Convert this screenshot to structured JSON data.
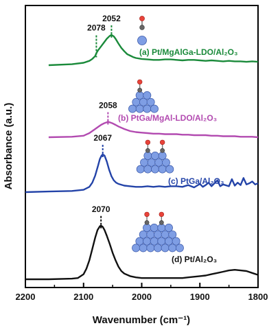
{
  "chart_data": {
    "type": "line",
    "xlabel": "Wavenumber (cm⁻¹)",
    "ylabel": "Absorbance (a.u.)",
    "x_reversed": true,
    "xlim": [
      1800,
      2200
    ],
    "xticks": [
      "2200",
      "2100",
      "2000",
      "1900",
      "1800"
    ],
    "series": [
      {
        "name": "(a) Pt/MgAlGa-LDO/Al₂O₃",
        "color": "#1a8a3a",
        "peaks": [
          "2078",
          "2052"
        ],
        "x": [
          2160,
          2120,
          2100,
          2090,
          2085,
          2080,
          2078,
          2075,
          2070,
          2065,
          2060,
          2055,
          2052,
          2048,
          2045,
          2040,
          2035,
          2030,
          2025,
          2020,
          2015,
          2010,
          2000,
          1990,
          1980,
          1970,
          1960,
          1950,
          1940,
          1930,
          1920,
          1910,
          1900,
          1890,
          1880,
          1870,
          1860,
          1850,
          1840,
          1830,
          1820,
          1810,
          1800
        ],
        "y": [
          0.0,
          0.02,
          0.05,
          0.09,
          0.13,
          0.19,
          0.25,
          0.31,
          0.39,
          0.47,
          0.55,
          0.61,
          0.63,
          0.6,
          0.55,
          0.45,
          0.36,
          0.29,
          0.23,
          0.2,
          0.17,
          0.15,
          0.13,
          0.12,
          0.11,
          0.11,
          0.12,
          0.12,
          0.11,
          0.1,
          0.11,
          0.11,
          0.1,
          0.09,
          0.1,
          0.09,
          0.08,
          0.09,
          0.08,
          0.08,
          0.07,
          0.08,
          0.07
        ]
      },
      {
        "name": "(b) PtGa/MgAl-LDO/Al₂O₃",
        "color": "#b24ab0",
        "peaks": [
          "2058"
        ],
        "x": [
          2160,
          2120,
          2100,
          2090,
          2080,
          2075,
          2070,
          2065,
          2060,
          2058,
          2055,
          2050,
          2045,
          2040,
          2030,
          2020,
          2010,
          2000,
          1990,
          1980,
          1970,
          1960,
          1950,
          1940,
          1930,
          1920,
          1910,
          1900,
          1890,
          1880,
          1870,
          1860,
          1850,
          1840,
          1830,
          1820,
          1810,
          1800
        ],
        "y": [
          0.0,
          0.01,
          0.03,
          0.08,
          0.16,
          0.2,
          0.24,
          0.27,
          0.29,
          0.3,
          0.29,
          0.27,
          0.24,
          0.21,
          0.16,
          0.12,
          0.1,
          0.09,
          0.08,
          0.07,
          0.07,
          0.06,
          0.06,
          0.06,
          0.05,
          0.05,
          0.04,
          0.04,
          0.04,
          0.03,
          0.03,
          0.02,
          0.02,
          0.02,
          0.01,
          0.01,
          0.01,
          0.0
        ]
      },
      {
        "name": "(c) PtGa/Al₂O₃",
        "color": "#2343a8",
        "peaks": [
          "2067"
        ],
        "x": [
          2200,
          2160,
          2120,
          2100,
          2090,
          2085,
          2080,
          2075,
          2072,
          2069,
          2067,
          2064,
          2060,
          2056,
          2052,
          2048,
          2044,
          2040,
          2030,
          2020,
          2010,
          2000,
          1990,
          1980,
          1970,
          1960,
          1950,
          1940,
          1930,
          1920,
          1910,
          1900,
          1895,
          1890,
          1885,
          1880,
          1870,
          1865,
          1860,
          1850,
          1845,
          1840,
          1835,
          1830,
          1825,
          1820,
          1815,
          1810,
          1805,
          1800
        ],
        "y": [
          0.0,
          0.01,
          0.02,
          0.04,
          0.09,
          0.16,
          0.28,
          0.45,
          0.56,
          0.62,
          0.64,
          0.62,
          0.52,
          0.38,
          0.27,
          0.2,
          0.16,
          0.14,
          0.11,
          0.1,
          0.09,
          0.09,
          0.1,
          0.09,
          0.1,
          0.09,
          0.1,
          0.1,
          0.09,
          0.12,
          0.08,
          0.14,
          0.09,
          0.12,
          0.16,
          0.1,
          0.2,
          0.1,
          0.13,
          0.1,
          0.22,
          0.11,
          0.16,
          0.12,
          0.24,
          0.13,
          0.15,
          0.18,
          0.13,
          0.15
        ]
      },
      {
        "name": "(d) Pt/Al₂O₃",
        "color": "#111111",
        "peaks": [
          "2070"
        ],
        "x": [
          2200,
          2160,
          2120,
          2110,
          2100,
          2095,
          2090,
          2085,
          2080,
          2076,
          2072,
          2070,
          2067,
          2064,
          2060,
          2055,
          2050,
          2045,
          2040,
          2035,
          2030,
          2020,
          2010,
          2000,
          1990,
          1980,
          1970,
          1960,
          1950,
          1940,
          1930,
          1920,
          1910,
          1900,
          1890,
          1880,
          1870,
          1860,
          1850,
          1840,
          1830,
          1820,
          1810,
          1800
        ],
        "y": [
          0.0,
          0.0,
          0.01,
          0.02,
          0.08,
          0.17,
          0.3,
          0.48,
          0.66,
          0.78,
          0.84,
          0.85,
          0.83,
          0.78,
          0.69,
          0.56,
          0.42,
          0.3,
          0.2,
          0.13,
          0.09,
          0.05,
          0.03,
          0.02,
          0.02,
          0.02,
          0.02,
          0.02,
          0.02,
          0.02,
          0.02,
          0.03,
          0.04,
          0.05,
          0.06,
          0.08,
          0.1,
          0.12,
          0.14,
          0.15,
          0.14,
          0.13,
          0.1,
          0.07
        ]
      }
    ]
  }
}
